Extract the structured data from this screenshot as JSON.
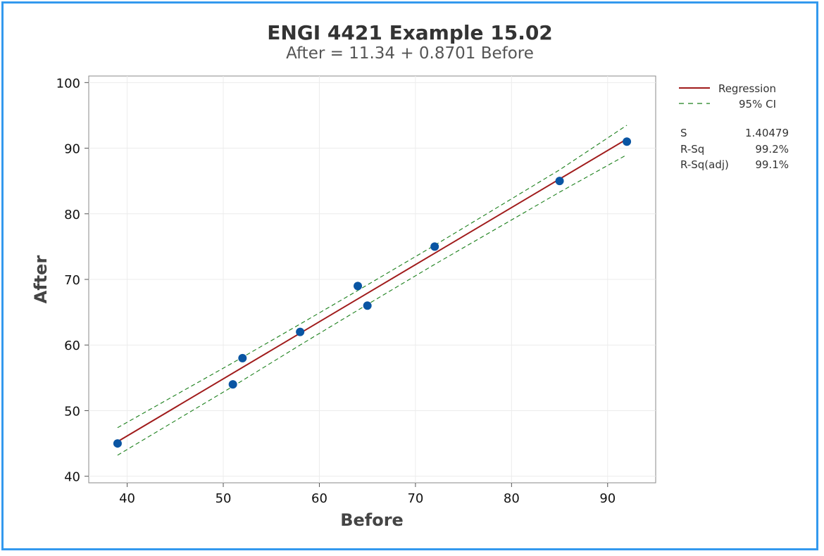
{
  "chart_data": {
    "type": "scatter",
    "title": "ENGI 4421 Example 15.02",
    "subtitle": "After = 11.34 + 0.8701 Before",
    "xlabel": "Before",
    "ylabel": "After",
    "xlim": [
      36,
      95
    ],
    "ylim": [
      39,
      101
    ],
    "xticks": [
      40,
      50,
      60,
      70,
      80,
      90
    ],
    "yticks": [
      40,
      50,
      60,
      70,
      80,
      90,
      100
    ],
    "grid": true,
    "points": {
      "x": [
        39,
        51,
        52,
        58,
        64,
        65,
        72,
        85,
        92
      ],
      "y": [
        45,
        54,
        58,
        62,
        69,
        66,
        75,
        85,
        91
      ],
      "color": "#0a55a3"
    },
    "regression": {
      "intercept": 11.34,
      "slope": 0.8701,
      "x_range": [
        39,
        92
      ],
      "color": "#a01b1b"
    },
    "ci": {
      "level": "95% CI",
      "color": "#1a7f1a",
      "upper": [
        [
          39,
          47.4
        ],
        [
          51,
          57.3
        ],
        [
          58,
          63.2
        ],
        [
          64,
          68.3
        ],
        [
          72,
          75.2
        ],
        [
          85,
          86.7
        ],
        [
          92,
          93.5
        ]
      ],
      "lower": [
        [
          39,
          43.2
        ],
        [
          51,
          53.7
        ],
        [
          58,
          60.0
        ],
        [
          64,
          65.3
        ],
        [
          72,
          72.3
        ],
        [
          85,
          83.3
        ],
        [
          92,
          89.0
        ]
      ]
    },
    "legend": {
      "position": "top-right",
      "items": [
        {
          "label": "Regression",
          "style": "solid",
          "color": "#a01b1b"
        },
        {
          "label": "95% CI",
          "style": "dashed",
          "color": "#1a7f1a"
        }
      ]
    },
    "stats": [
      {
        "label": "S",
        "value": "1.40479"
      },
      {
        "label": "R-Sq",
        "value": "99.2%"
      },
      {
        "label": "R-Sq(adj)",
        "value": "99.1%"
      }
    ]
  }
}
